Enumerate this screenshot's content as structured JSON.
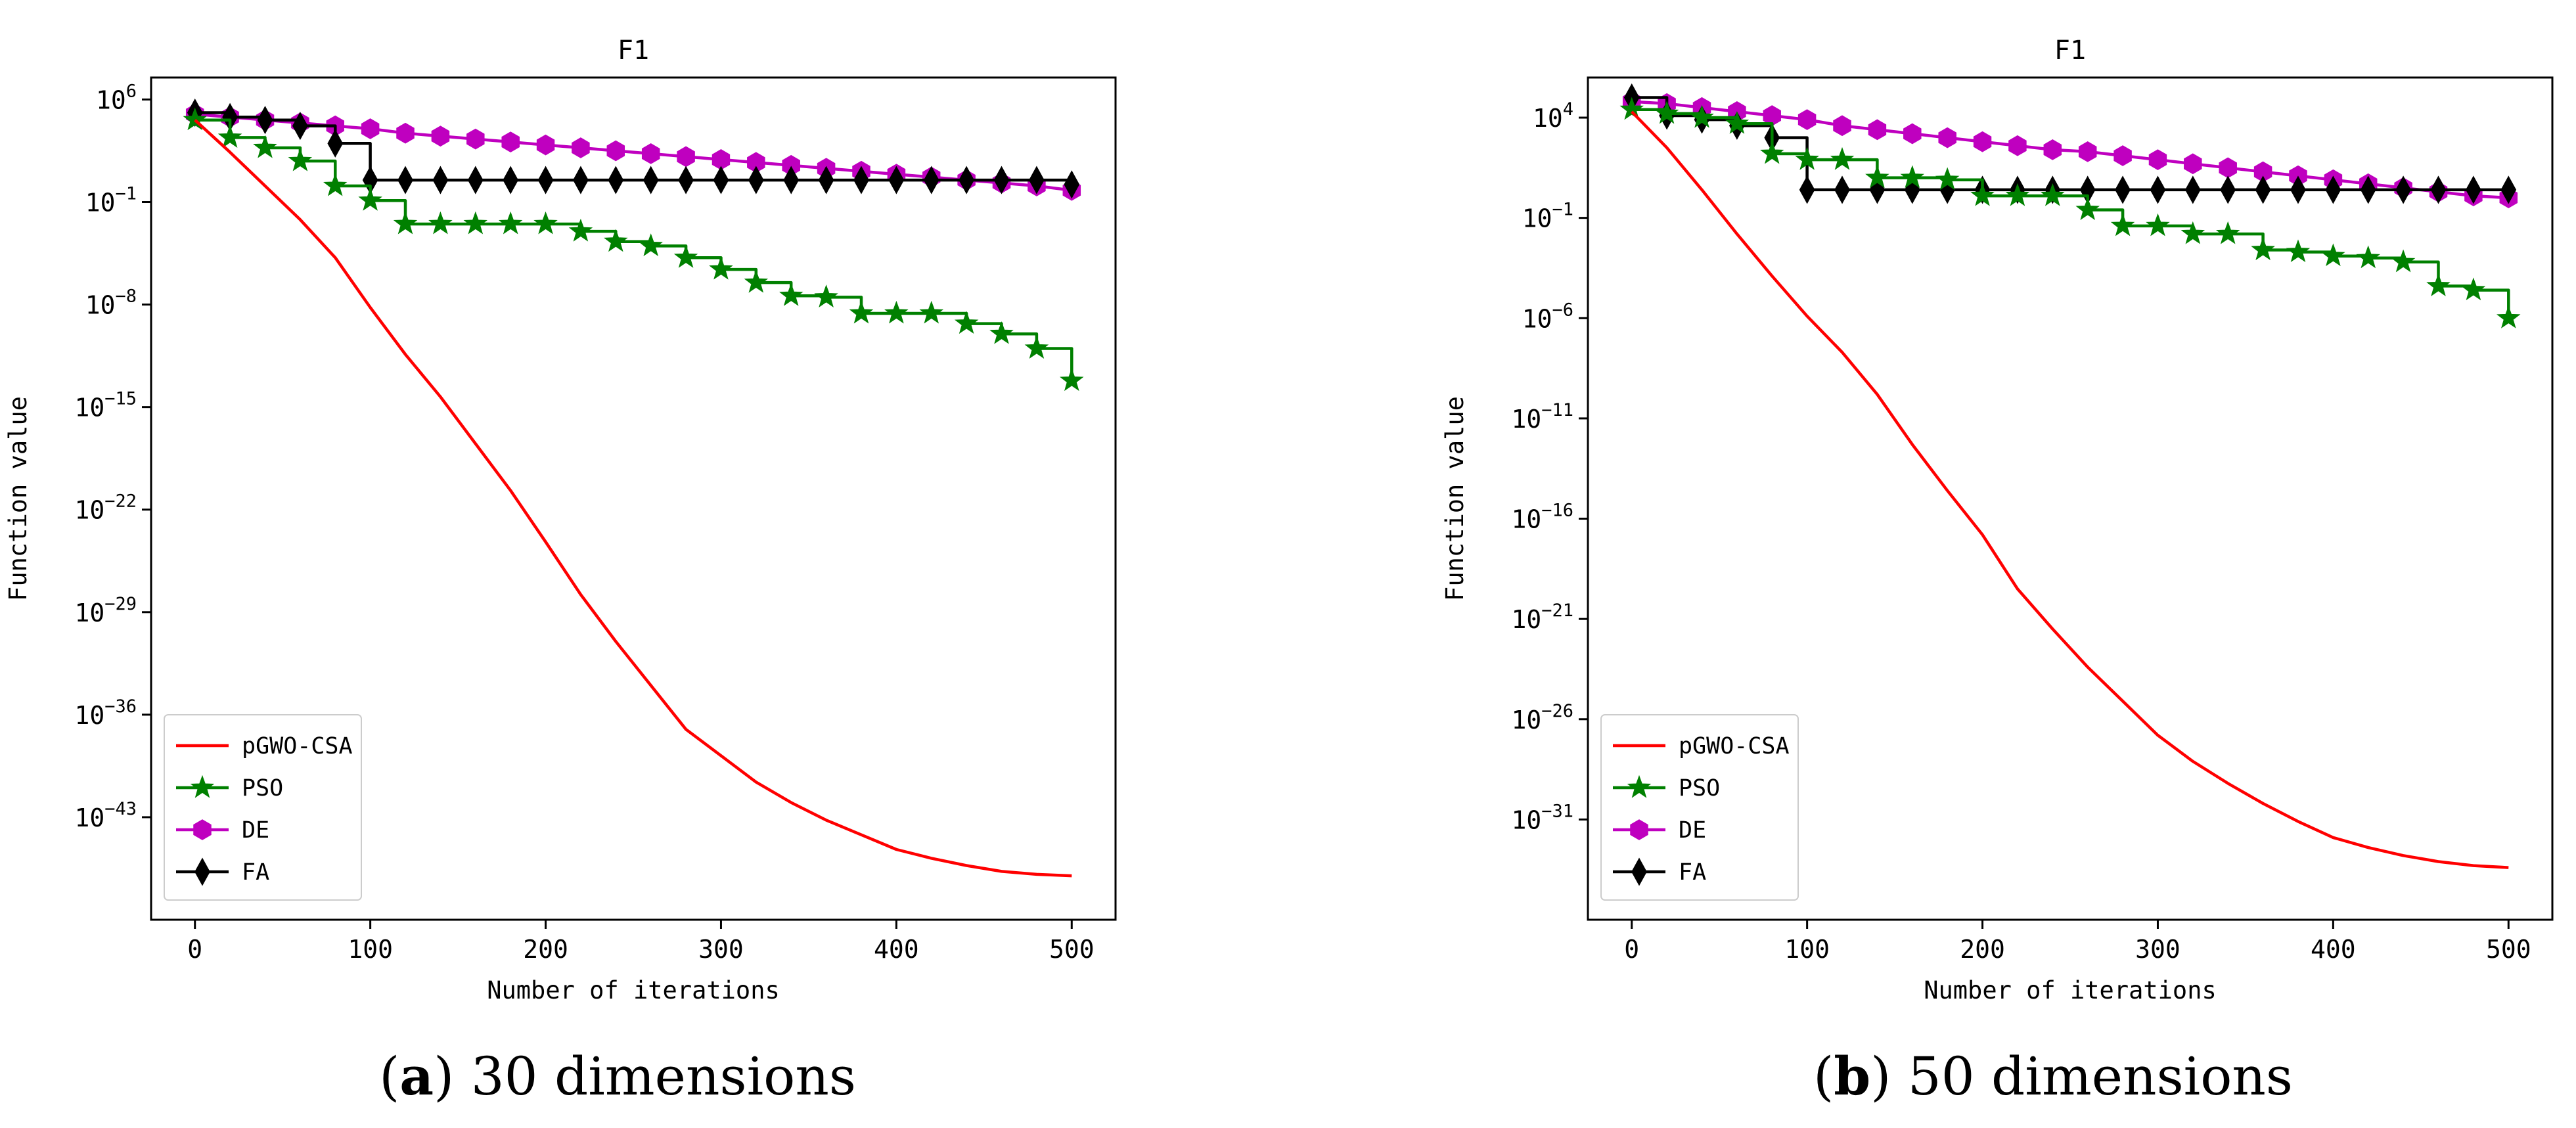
{
  "chart_data": [
    {
      "type": "line",
      "title": "F1",
      "xlabel": "Number of iterations",
      "ylabel": "Function value",
      "yscale": "log",
      "xlim": [
        -25,
        525
      ],
      "ylim_log10": [
        -50,
        7.5
      ],
      "xticks": [
        0,
        100,
        200,
        300,
        400,
        500
      ],
      "yticks_exp": [
        6,
        -1,
        -8,
        -15,
        -22,
        -29,
        -36,
        -43
      ],
      "legend_location": "lower left",
      "caption_letter": "a",
      "caption_text": " 30 dimensions",
      "series": [
        {
          "name": "pGWO-CSA",
          "color": "#ff0000",
          "marker": "none",
          "x": [
            0,
            20,
            40,
            60,
            80,
            100,
            120,
            140,
            160,
            180,
            200,
            220,
            240,
            260,
            280,
            300,
            320,
            340,
            360,
            380,
            400,
            420,
            440,
            460,
            480,
            500
          ],
          "log10": [
            4.6,
            2.4,
            0.1,
            -2.2,
            -4.8,
            -8.2,
            -11.4,
            -14.3,
            -17.5,
            -20.7,
            -24.2,
            -27.8,
            -31.0,
            -34.0,
            -37.0,
            -38.8,
            -40.6,
            -42.0,
            -43.2,
            -44.2,
            -45.2,
            -45.8,
            -46.3,
            -46.7,
            -46.9,
            -47.0
          ]
        },
        {
          "name": "PSO",
          "color": "#008000",
          "marker": "star",
          "x": [
            0,
            20,
            40,
            60,
            80,
            100,
            120,
            140,
            160,
            180,
            200,
            220,
            240,
            260,
            280,
            300,
            320,
            340,
            360,
            380,
            400,
            420,
            440,
            460,
            480,
            500
          ],
          "log10": [
            4.6,
            3.4,
            2.7,
            1.8,
            0.1,
            -0.9,
            -2.5,
            -2.5,
            -2.5,
            -2.5,
            -2.5,
            -3.0,
            -3.7,
            -4.0,
            -4.8,
            -5.6,
            -6.5,
            -7.4,
            -7.5,
            -8.6,
            -8.6,
            -8.6,
            -9.3,
            -10.0,
            -11.0,
            -13.2
          ]
        },
        {
          "name": "DE",
          "color": "#bf00bf",
          "marker": "hexagon",
          "x": [
            0,
            20,
            40,
            60,
            80,
            100,
            120,
            140,
            160,
            180,
            200,
            220,
            240,
            260,
            280,
            300,
            320,
            340,
            360,
            380,
            400,
            420,
            440,
            460,
            480,
            500
          ],
          "log10": [
            5.0,
            4.8,
            4.6,
            4.4,
            4.2,
            4.0,
            3.7,
            3.5,
            3.3,
            3.1,
            2.9,
            2.7,
            2.5,
            2.3,
            2.1,
            1.9,
            1.7,
            1.5,
            1.3,
            1.1,
            0.9,
            0.7,
            0.5,
            0.3,
            0.1,
            -0.2
          ]
        },
        {
          "name": "FA",
          "color": "#000000",
          "marker": "thin_diamond",
          "x": [
            0,
            20,
            40,
            60,
            80,
            100,
            120,
            140,
            160,
            180,
            200,
            220,
            240,
            260,
            280,
            300,
            320,
            340,
            360,
            380,
            400,
            420,
            440,
            460,
            480,
            500
          ],
          "log10": [
            5.1,
            4.8,
            4.6,
            4.2,
            3.0,
            0.5,
            0.5,
            0.5,
            0.5,
            0.5,
            0.5,
            0.5,
            0.5,
            0.5,
            0.5,
            0.5,
            0.5,
            0.5,
            0.5,
            0.5,
            0.5,
            0.5,
            0.5,
            0.5,
            0.5,
            0.2
          ]
        }
      ]
    },
    {
      "type": "line",
      "title": "F1",
      "xlabel": "Number of iterations",
      "ylabel": "Function value",
      "yscale": "log",
      "xlim": [
        -25,
        525
      ],
      "ylim_log10": [
        -36,
        6
      ],
      "xticks": [
        0,
        100,
        200,
        300,
        400,
        500
      ],
      "yticks_exp": [
        4,
        -1,
        -6,
        -11,
        -16,
        -21,
        -26,
        -31
      ],
      "legend_location": "lower left",
      "caption_letter": "b",
      "caption_text": " 50 dimensions",
      "series": [
        {
          "name": "pGWO-CSA",
          "color": "#ff0000",
          "marker": "none",
          "x": [
            0,
            20,
            40,
            60,
            80,
            100,
            120,
            140,
            160,
            180,
            200,
            220,
            240,
            260,
            280,
            300,
            320,
            340,
            360,
            380,
            400,
            420,
            440,
            460,
            480,
            500
          ],
          "log10": [
            4.3,
            2.5,
            0.4,
            -1.8,
            -3.9,
            -5.9,
            -7.7,
            -9.8,
            -12.3,
            -14.6,
            -16.8,
            -19.5,
            -21.5,
            -23.4,
            -25.1,
            -26.8,
            -28.1,
            -29.2,
            -30.2,
            -31.1,
            -31.9,
            -32.4,
            -32.8,
            -33.1,
            -33.3,
            -33.4
          ]
        },
        {
          "name": "PSO",
          "color": "#008000",
          "marker": "star",
          "x": [
            0,
            20,
            40,
            60,
            80,
            100,
            120,
            140,
            160,
            180,
            200,
            220,
            240,
            260,
            280,
            300,
            320,
            340,
            360,
            380,
            400,
            420,
            440,
            460,
            480,
            500
          ],
          "log10": [
            4.4,
            4.2,
            4.0,
            3.7,
            2.2,
            1.9,
            1.9,
            1.0,
            1.0,
            0.9,
            0.1,
            0.1,
            0.1,
            -0.6,
            -1.4,
            -1.4,
            -1.8,
            -1.8,
            -2.6,
            -2.7,
            -2.9,
            -3.0,
            -3.2,
            -4.4,
            -4.6,
            -6.0
          ]
        },
        {
          "name": "DE",
          "color": "#bf00bf",
          "marker": "hexagon",
          "x": [
            0,
            20,
            40,
            60,
            80,
            100,
            120,
            140,
            160,
            180,
            200,
            220,
            240,
            260,
            280,
            300,
            320,
            340,
            360,
            380,
            400,
            420,
            440,
            460,
            480,
            500
          ],
          "log10": [
            4.8,
            4.7,
            4.5,
            4.3,
            4.1,
            3.9,
            3.6,
            3.4,
            3.2,
            3.0,
            2.8,
            2.6,
            2.4,
            2.3,
            2.1,
            1.9,
            1.7,
            1.5,
            1.3,
            1.1,
            0.9,
            0.7,
            0.5,
            0.3,
            0.1,
            0.0
          ]
        },
        {
          "name": "FA",
          "color": "#000000",
          "marker": "thin_diamond",
          "x": [
            0,
            20,
            40,
            60,
            80,
            100,
            120,
            140,
            160,
            180,
            200,
            220,
            240,
            260,
            280,
            300,
            320,
            340,
            360,
            380,
            400,
            420,
            440,
            460,
            480,
            500
          ],
          "log10": [
            5.0,
            4.1,
            3.9,
            3.6,
            3.0,
            0.4,
            0.4,
            0.4,
            0.4,
            0.4,
            0.4,
            0.4,
            0.4,
            0.4,
            0.4,
            0.4,
            0.4,
            0.4,
            0.4,
            0.4,
            0.4,
            0.4,
            0.4,
            0.4,
            0.4,
            0.4
          ]
        }
      ]
    }
  ]
}
